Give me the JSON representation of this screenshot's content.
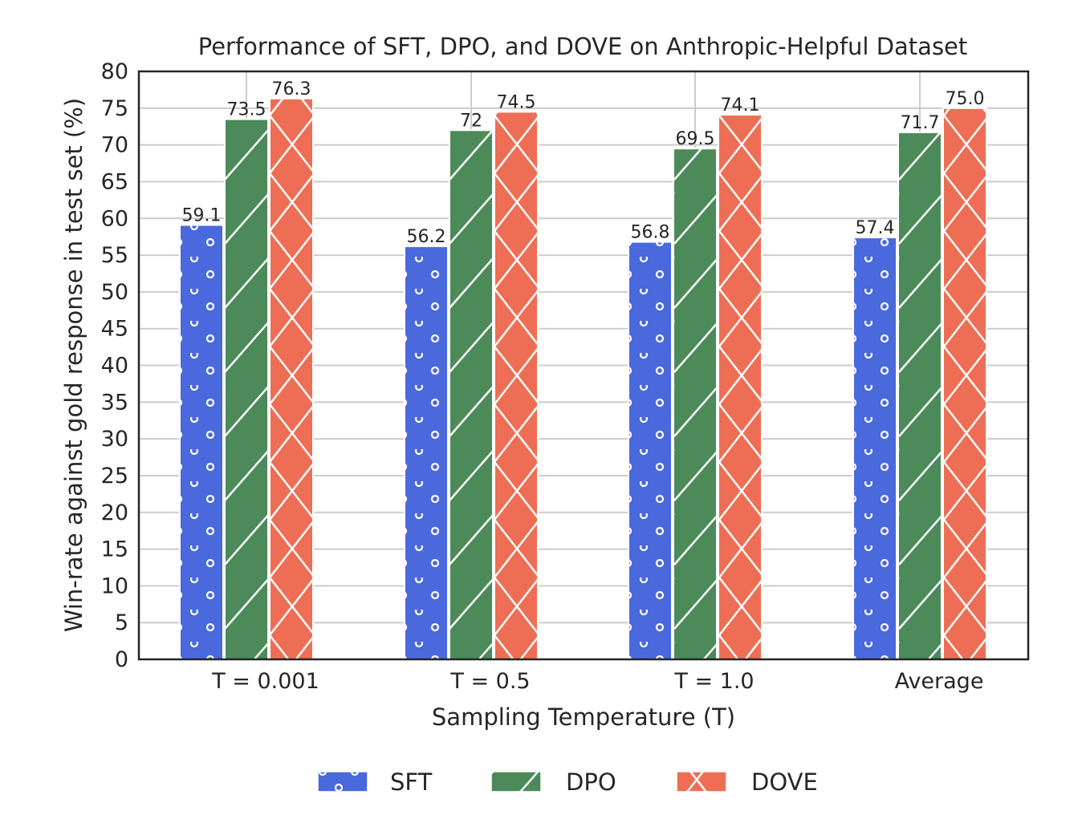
{
  "chart_data": {
    "type": "bar",
    "title": "Performance of SFT, DPO, and DOVE on Anthropic-Helpful Dataset",
    "xlabel": "Sampling Temperature (T)",
    "ylabel": "Win-rate against gold response in test set (%)",
    "categories": [
      "T = 0.001",
      "T = 0.5",
      "T = 1.0",
      "Average"
    ],
    "ylim": [
      0,
      80
    ],
    "yticks": [
      0,
      5,
      10,
      15,
      20,
      25,
      30,
      35,
      40,
      45,
      50,
      55,
      60,
      65,
      70,
      75,
      80
    ],
    "grid": true,
    "legend_position": "bottom-center",
    "series": [
      {
        "name": "SFT",
        "values": [
          59.1,
          56.2,
          56.8,
          57.4
        ],
        "labels": [
          "59.1",
          "56.2",
          "56.8",
          "57.4"
        ],
        "color": "#4a69dd",
        "hatch": "circles"
      },
      {
        "name": "DPO",
        "values": [
          73.5,
          72,
          69.5,
          71.7
        ],
        "labels": [
          "73.5",
          "72",
          "69.5",
          "71.7"
        ],
        "color": "#4c8a5a",
        "hatch": "diagonal"
      },
      {
        "name": "DOVE",
        "values": [
          76.3,
          74.5,
          74.1,
          75.0
        ],
        "labels": [
          "76.3",
          "74.5",
          "74.1",
          "75.0"
        ],
        "color": "#ee6e55",
        "hatch": "crosshatch"
      }
    ]
  }
}
